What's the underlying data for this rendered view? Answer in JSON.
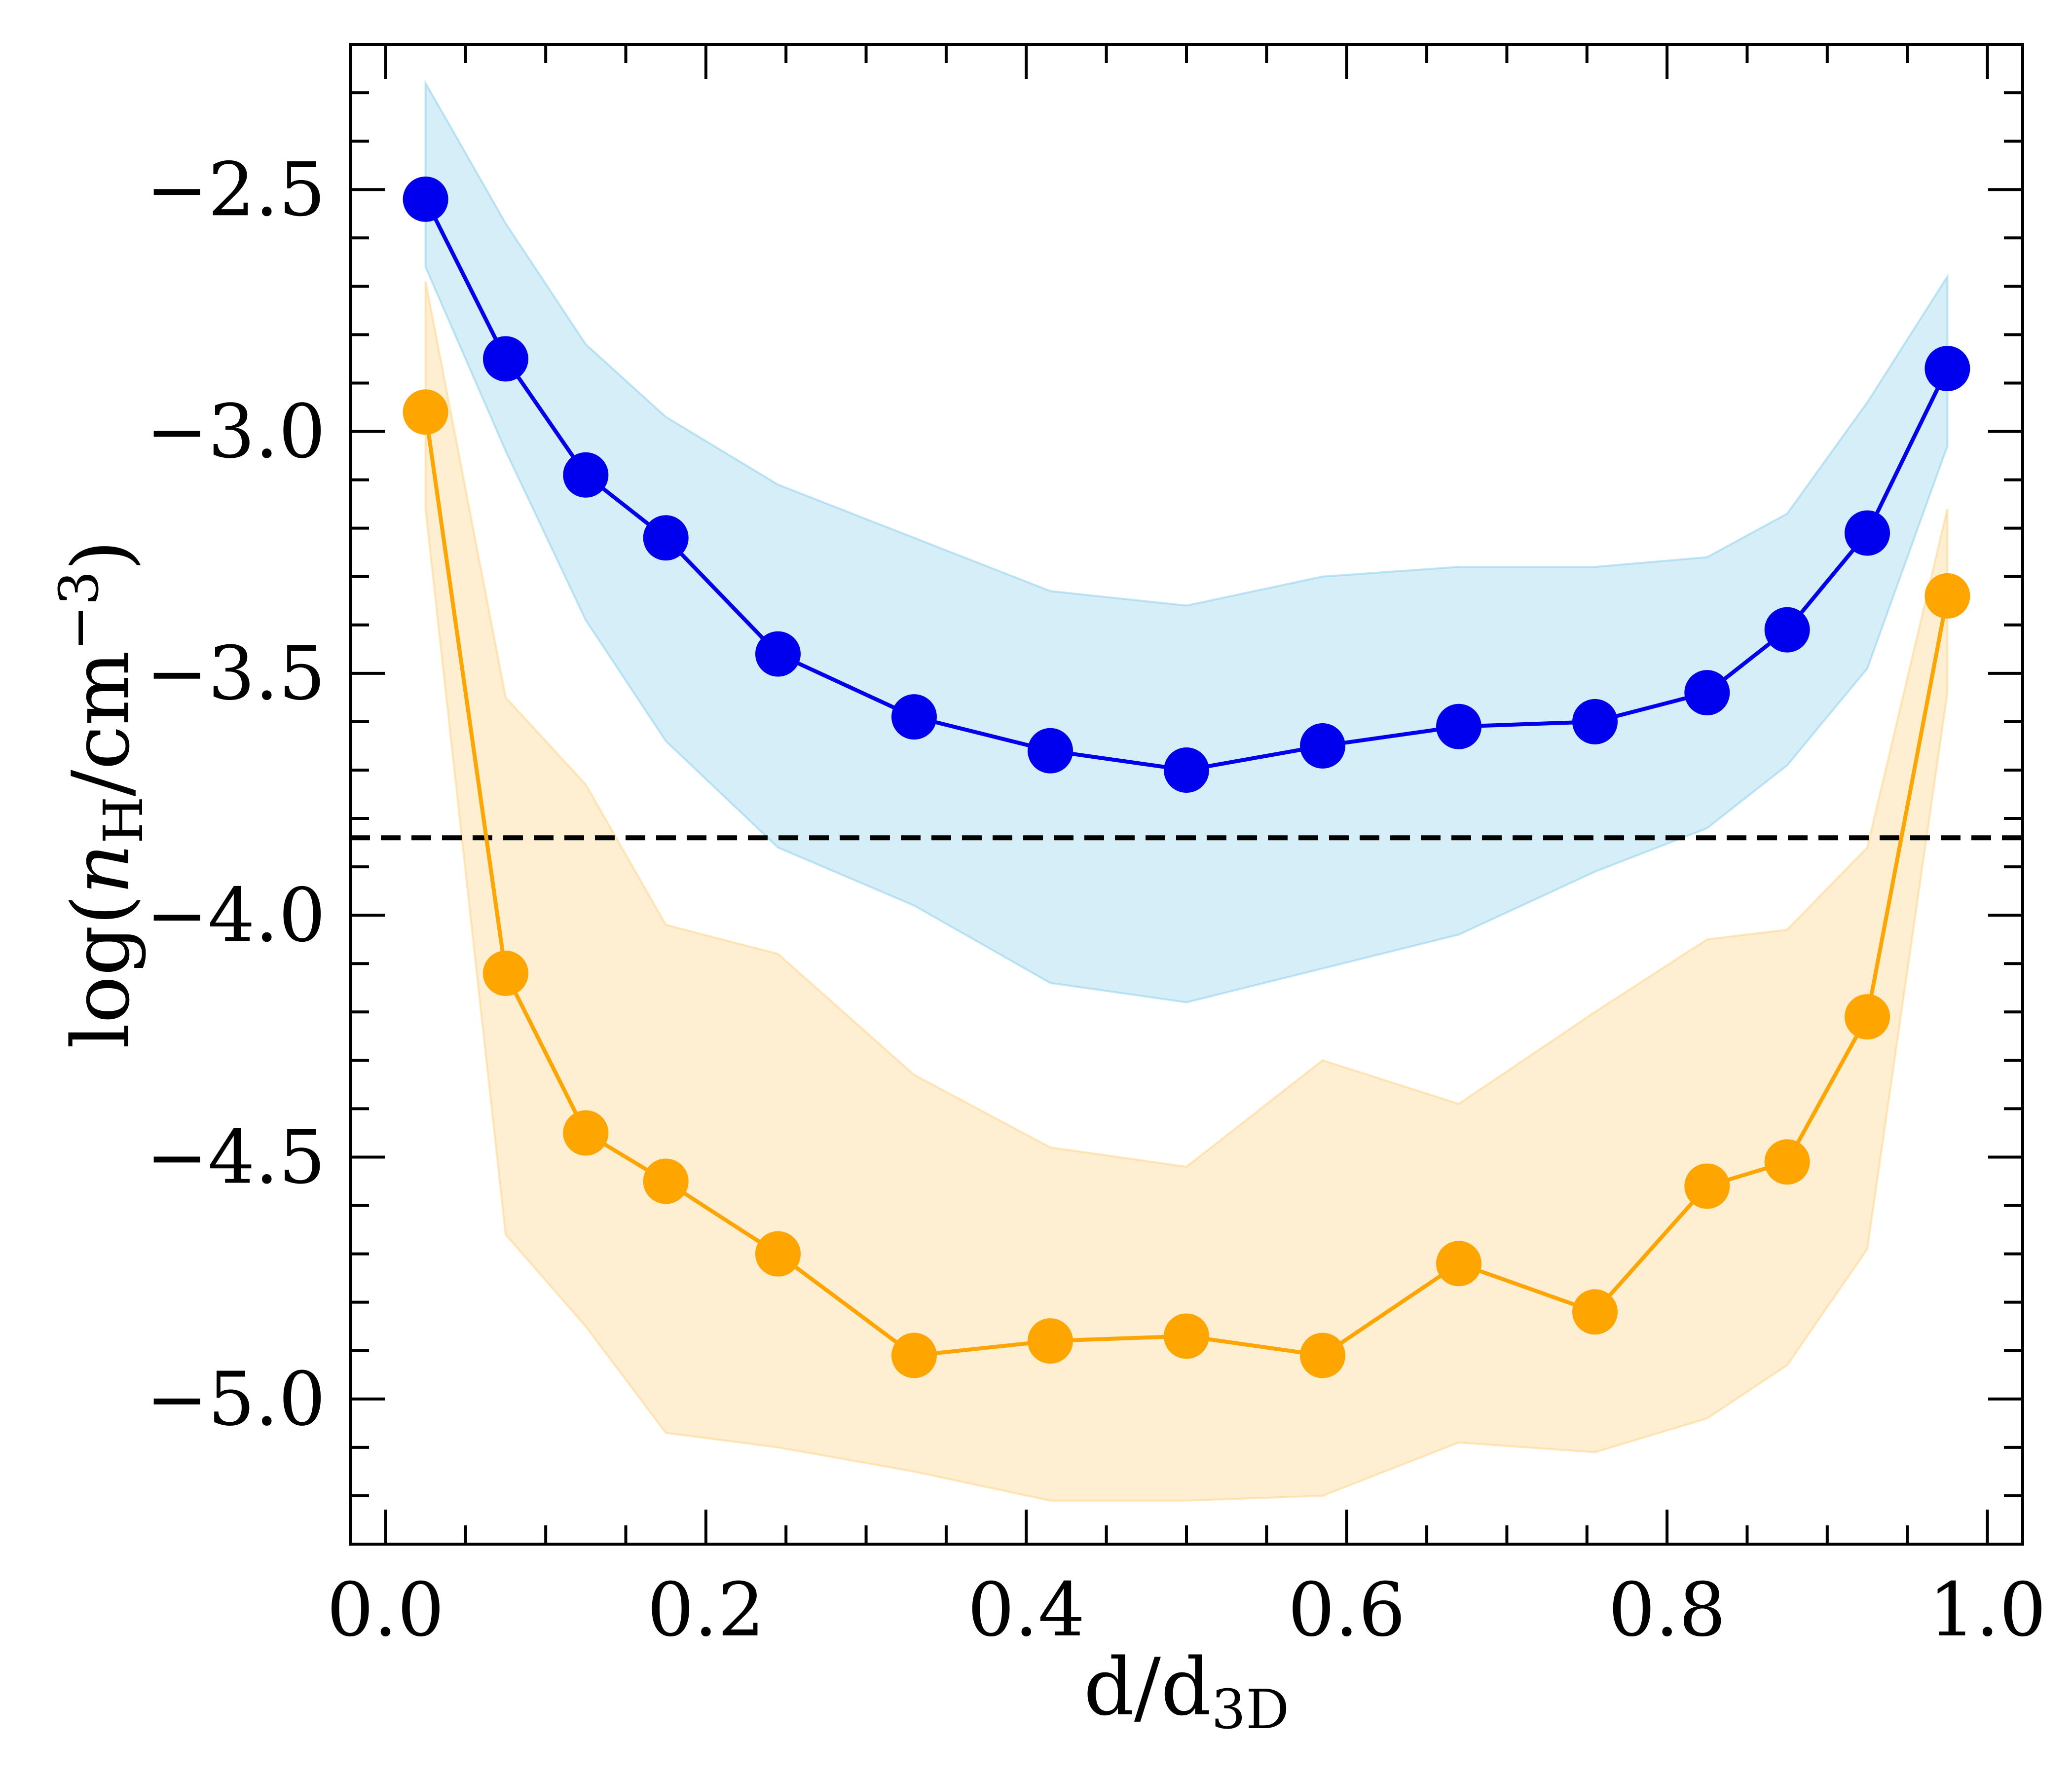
{
  "chart_data": {
    "type": "line",
    "title": "",
    "xlabel": "d/d",
    "xlabel_sub": "3D",
    "ylabel": {
      "prefix": "log(",
      "var": "n",
      "var_sub": "H",
      "mid": "/cm",
      "sup": "−3",
      "suffix": ")"
    },
    "xlim": [
      -0.022,
      1.022
    ],
    "ylim": [
      -5.3,
      -2.2
    ],
    "x_ticks": [
      0.0,
      0.2,
      0.4,
      0.6,
      0.8,
      1.0
    ],
    "x_tick_labels": [
      "0.0",
      "0.2",
      "0.4",
      "0.6",
      "0.8",
      "1.0"
    ],
    "y_ticks": [
      -5.0,
      -4.5,
      -4.0,
      -3.5,
      -3.0,
      -2.5
    ],
    "y_tick_labels": [
      "−5.0",
      "−4.5",
      "−4.0",
      "−3.5",
      "−3.0",
      "−2.5"
    ],
    "x_minor_step": 0.05,
    "y_minor_step": 0.1,
    "reference_line": {
      "y": -3.84,
      "style": "dashed",
      "color": "#000000"
    },
    "series": [
      {
        "name": "blue",
        "color": "#0000ee",
        "band_color": "#87ceeb",
        "x": [
          0.025,
          0.075,
          0.125,
          0.175,
          0.245,
          0.33,
          0.415,
          0.5,
          0.585,
          0.67,
          0.755,
          0.825,
          0.875,
          0.925,
          0.975
        ],
        "y": [
          -2.52,
          -2.85,
          -3.09,
          -3.22,
          -3.46,
          -3.59,
          -3.66,
          -3.7,
          -3.65,
          -3.61,
          -3.6,
          -3.54,
          -3.41,
          -3.21,
          -2.87
        ],
        "upper": [
          -2.28,
          -2.57,
          -2.82,
          -2.97,
          -3.11,
          -3.22,
          -3.33,
          -3.36,
          -3.3,
          -3.28,
          -3.28,
          -3.26,
          -3.17,
          -2.94,
          -2.68
        ],
        "lower": [
          -2.66,
          -3.04,
          -3.39,
          -3.64,
          -3.86,
          -3.98,
          -4.14,
          -4.18,
          -4.11,
          -4.04,
          -3.91,
          -3.82,
          -3.69,
          -3.49,
          -3.03
        ]
      },
      {
        "name": "orange",
        "color": "#ffa500",
        "band_color": "#ffd27f",
        "x": [
          0.025,
          0.075,
          0.125,
          0.175,
          0.245,
          0.33,
          0.415,
          0.5,
          0.585,
          0.67,
          0.755,
          0.825,
          0.875,
          0.925,
          0.975
        ],
        "y": [
          -2.96,
          -4.12,
          -4.45,
          -4.55,
          -4.7,
          -4.91,
          -4.88,
          -4.87,
          -4.91,
          -4.72,
          -4.82,
          -4.56,
          -4.51,
          -4.21,
          -3.34
        ],
        "upper": [
          -2.69,
          -3.55,
          -3.73,
          -4.02,
          -4.08,
          -4.33,
          -4.48,
          -4.52,
          -4.3,
          -4.39,
          -4.2,
          -4.05,
          -4.03,
          -3.86,
          -3.16
        ],
        "lower": [
          -3.16,
          -4.66,
          -4.85,
          -5.07,
          -5.1,
          -5.15,
          -5.21,
          -5.21,
          -5.2,
          -5.09,
          -5.11,
          -5.04,
          -4.93,
          -4.69,
          -3.54
        ]
      }
    ]
  }
}
